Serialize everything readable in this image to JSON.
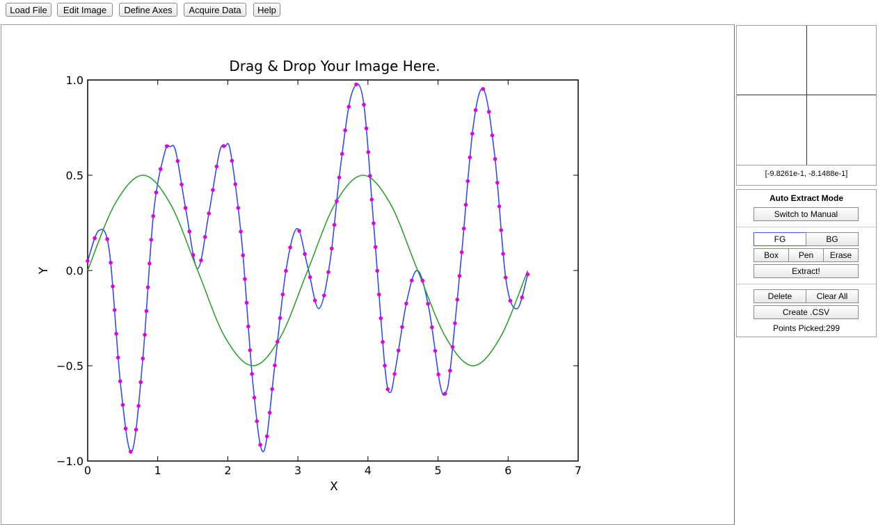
{
  "toolbar": {
    "load_file": "Load File",
    "edit_image": "Edit Image",
    "define_axes": "Define Axes",
    "acquire_data": "Acquire Data",
    "help": "Help"
  },
  "zoom_panel": {
    "cursor_readout": "[-9.8261e-1, -8.1488e-1]"
  },
  "extract_panel": {
    "mode_title": "Auto Extract Mode",
    "switch_label": "Switch to Manual",
    "fg_label": "FG",
    "bg_label": "BG",
    "box_label": "Box",
    "pen_label": "Pen",
    "erase_label": "Erase",
    "extract_label": "Extract!",
    "delete_label": "Delete",
    "clear_all_label": "Clear All",
    "csv_label": "Create .CSV",
    "points_picked": "Points Picked:299"
  },
  "colors": {
    "series_blue": "#2b4df5",
    "series_green": "#2ca02c",
    "picked_points": "#e000e0",
    "active_outline": "#3a5bd9"
  },
  "chart_data": {
    "type": "line",
    "title": "Drag & Drop Your Image Here.",
    "xlabel": "X",
    "ylabel": "Y",
    "xlim": [
      0,
      7
    ],
    "ylim": [
      -1.0,
      1.0
    ],
    "xticks": [
      "0",
      "1",
      "2",
      "3",
      "4",
      "5",
      "6",
      "7"
    ],
    "yticks": [
      "1.0",
      "0.5",
      "0.0",
      "−0.5",
      "−1.0"
    ],
    "grid": false,
    "series": [
      {
        "color": "blue",
        "x": [
          0.0,
          0.16,
          0.31,
          0.47,
          0.63,
          0.79,
          0.94,
          1.1,
          1.18,
          1.26,
          1.41,
          1.57,
          1.73,
          1.88,
          1.96,
          2.04,
          2.2,
          2.36,
          2.51,
          2.67,
          2.83,
          2.99,
          3.14,
          3.3,
          3.46,
          3.61,
          3.77,
          3.93,
          4.08,
          4.24,
          4.32,
          4.4,
          4.56,
          4.71,
          4.87,
          5.03,
          5.11,
          5.18,
          5.34,
          5.5,
          5.65,
          5.81,
          5.97,
          6.13,
          6.28
        ],
        "y": [
          0.05,
          0.21,
          0.1,
          -0.6,
          -0.95,
          -0.45,
          0.3,
          0.62,
          0.65,
          0.62,
          0.3,
          0.01,
          0.3,
          0.62,
          0.65,
          0.62,
          0.15,
          -0.6,
          -0.95,
          -0.5,
          0.0,
          0.22,
          0.02,
          -0.2,
          0.05,
          0.55,
          0.93,
          0.9,
          0.25,
          -0.5,
          -0.64,
          -0.5,
          -0.15,
          0.0,
          -0.2,
          -0.6,
          -0.64,
          -0.5,
          0.1,
          0.75,
          0.95,
          0.6,
          -0.05,
          -0.2,
          -0.02
        ]
      },
      {
        "color": "green",
        "x": [
          0.0,
          0.39,
          0.79,
          1.18,
          1.57,
          1.96,
          2.36,
          2.75,
          3.14,
          3.53,
          3.93,
          4.32,
          4.71,
          5.11,
          5.5,
          5.89,
          6.28
        ],
        "y": [
          0.0,
          0.35,
          0.5,
          0.35,
          0.0,
          -0.35,
          -0.5,
          -0.35,
          0.0,
          0.35,
          0.5,
          0.35,
          0.0,
          -0.35,
          -0.5,
          -0.35,
          0.0
        ]
      }
    ],
    "picked_point_count": 299
  }
}
